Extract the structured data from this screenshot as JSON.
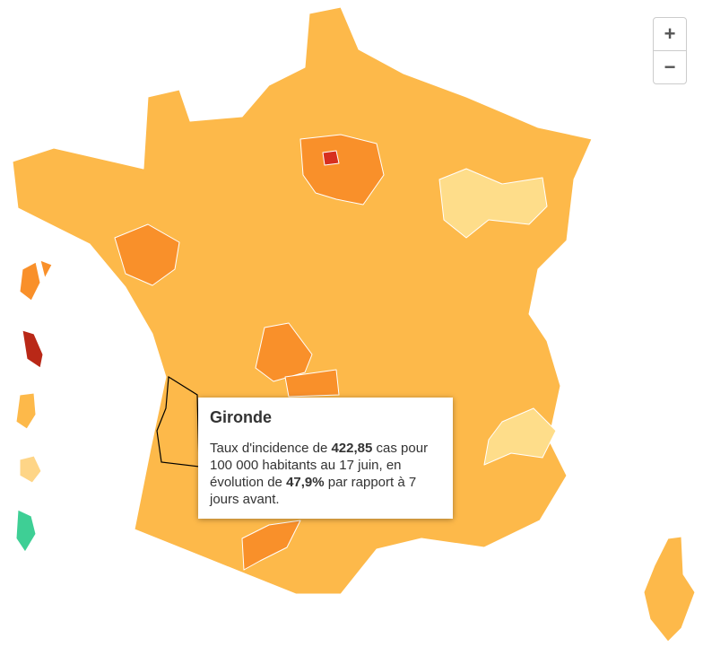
{
  "tooltip": {
    "title": "Gironde",
    "text_before": "Taux d'incidence de ",
    "incidence": "422,85",
    "text_middle": " cas pour 100 000 habitants au 17 juin, en évolution de ",
    "evolution": "47,9%",
    "text_after": " par rapport à 7 jours avant."
  },
  "zoom": {
    "zoom_in": "+",
    "zoom_out": "−"
  }
}
